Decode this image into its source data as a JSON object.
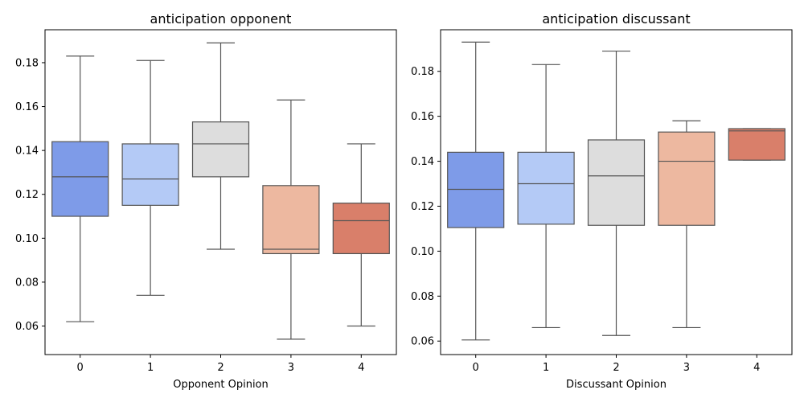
{
  "chart_data": [
    {
      "type": "box",
      "title": "anticipation opponent",
      "xlabel": "Opponent Opinion",
      "ylabel": "",
      "categories": [
        "0",
        "1",
        "2",
        "3",
        "4"
      ],
      "ylim": [
        0.047,
        0.195
      ],
      "yticks": [
        0.06,
        0.08,
        0.1,
        0.12,
        0.14,
        0.16,
        0.18
      ],
      "ytick_labels": [
        "0.06",
        "0.08",
        "0.10",
        "0.12",
        "0.14",
        "0.16",
        "0.18"
      ],
      "grid": false,
      "boxes": [
        {
          "category": "0",
          "whisker_low": 0.062,
          "q1": 0.11,
          "median": 0.128,
          "q3": 0.144,
          "whisker_high": 0.183
        },
        {
          "category": "1",
          "whisker_low": 0.074,
          "q1": 0.115,
          "median": 0.127,
          "q3": 0.143,
          "whisker_high": 0.181
        },
        {
          "category": "2",
          "whisker_low": 0.095,
          "q1": 0.128,
          "median": 0.143,
          "q3": 0.153,
          "whisker_high": 0.189
        },
        {
          "category": "3",
          "whisker_low": 0.054,
          "q1": 0.093,
          "median": 0.095,
          "q3": 0.124,
          "whisker_high": 0.163
        },
        {
          "category": "4",
          "whisker_low": 0.06,
          "q1": 0.093,
          "median": 0.108,
          "q3": 0.116,
          "whisker_high": 0.143
        }
      ],
      "colors": [
        "#7e9be8",
        "#b4caf6",
        "#dddddd",
        "#edb8a0",
        "#d97f6a"
      ]
    },
    {
      "type": "box",
      "title": "anticipation discussant",
      "xlabel": "Discussant Opinion",
      "ylabel": "",
      "categories": [
        "0",
        "1",
        "2",
        "3",
        "4"
      ],
      "ylim": [
        0.054,
        0.1985
      ],
      "yticks": [
        0.06,
        0.08,
        0.1,
        0.12,
        0.14,
        0.16,
        0.18
      ],
      "ytick_labels": [
        "0.06",
        "0.08",
        "0.10",
        "0.12",
        "0.14",
        "0.16",
        "0.18"
      ],
      "grid": false,
      "boxes": [
        {
          "category": "0",
          "whisker_low": 0.0605,
          "q1": 0.1105,
          "median": 0.1275,
          "q3": 0.144,
          "whisker_high": 0.193
        },
        {
          "category": "1",
          "whisker_low": 0.066,
          "q1": 0.112,
          "median": 0.13,
          "q3": 0.144,
          "whisker_high": 0.183
        },
        {
          "category": "2",
          "whisker_low": 0.0625,
          "q1": 0.1115,
          "median": 0.1335,
          "q3": 0.1495,
          "whisker_high": 0.189
        },
        {
          "category": "3",
          "whisker_low": 0.066,
          "q1": 0.1115,
          "median": 0.14,
          "q3": 0.153,
          "whisker_high": 0.158
        },
        {
          "category": "4",
          "whisker_low": 0.1405,
          "q1": 0.1405,
          "median": 0.1535,
          "q3": 0.1545,
          "whisker_high": 0.1545
        }
      ],
      "colors": [
        "#7e9be8",
        "#b4caf6",
        "#dddddd",
        "#edb8a0",
        "#d97f6a"
      ]
    }
  ]
}
